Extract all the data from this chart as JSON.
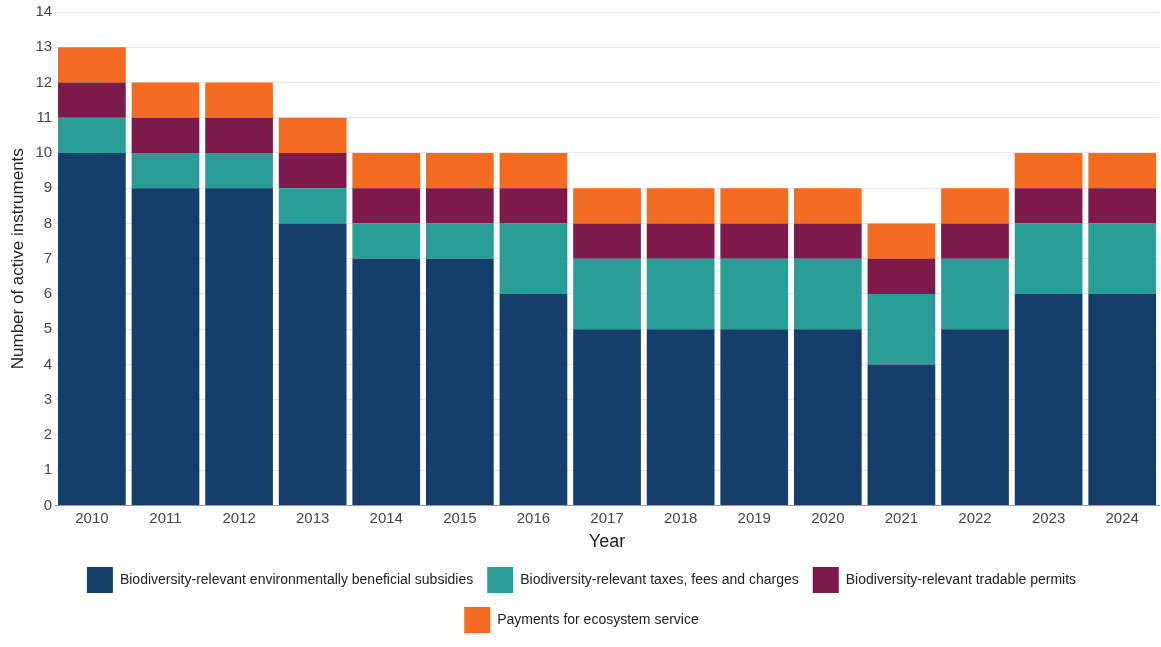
{
  "chart_data": {
    "type": "bar",
    "stacked": true,
    "xlabel": "Year",
    "ylabel": "Number of active instruments",
    "categories": [
      "2010",
      "2011",
      "2012",
      "2013",
      "2014",
      "2015",
      "2016",
      "2017",
      "2018",
      "2019",
      "2020",
      "2021",
      "2022",
      "2023",
      "2024"
    ],
    "series": [
      {
        "name": "Biodiversity-relevant environmentally beneficial subsidies",
        "color": "#143f6b",
        "values": [
          10,
          9,
          9,
          8,
          7,
          7,
          6,
          5,
          5,
          5,
          5,
          4,
          5,
          6,
          6
        ]
      },
      {
        "name": "Biodiversity-relevant taxes, fees and charges",
        "color": "#2a9d96",
        "values": [
          1,
          1,
          1,
          1,
          1,
          1,
          2,
          2,
          2,
          2,
          2,
          2,
          2,
          2,
          2
        ]
      },
      {
        "name": "Biodiversity-relevant tradable permits",
        "color": "#7d1a4a",
        "values": [
          1,
          1,
          1,
          1,
          1,
          1,
          1,
          1,
          1,
          1,
          1,
          1,
          1,
          1,
          1
        ]
      },
      {
        "name": "Payments for ecosystem service",
        "color": "#f26b21",
        "values": [
          1,
          1,
          1,
          1,
          1,
          1,
          1,
          1,
          1,
          1,
          1,
          1,
          1,
          1,
          1
        ]
      }
    ],
    "ylim": [
      0,
      14
    ],
    "yticks": [
      0,
      1,
      2,
      3,
      4,
      5,
      6,
      7,
      8,
      9,
      10,
      11,
      12,
      13,
      14
    ],
    "grid": "y",
    "legend": "bottom"
  }
}
